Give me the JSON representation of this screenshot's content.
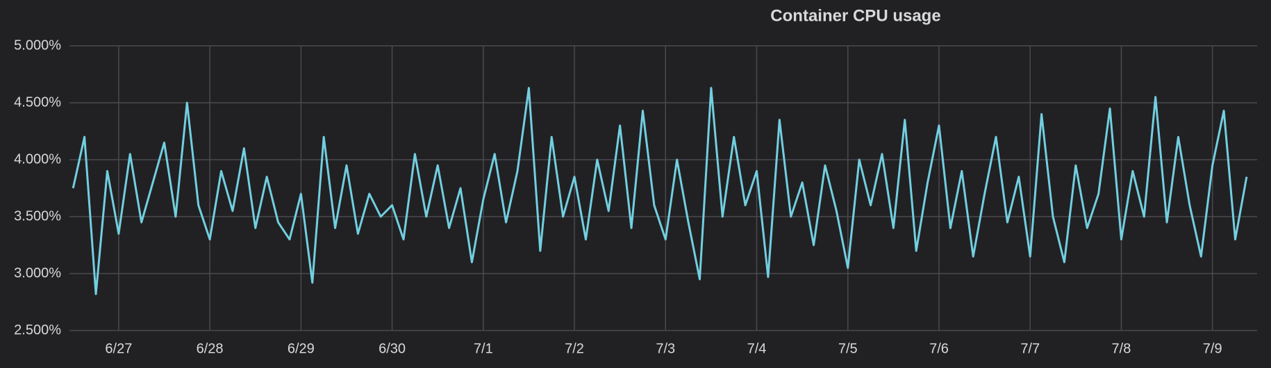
{
  "chart_data": {
    "type": "line",
    "title": "Container CPU usage",
    "color": "#72cfe0",
    "grid": true,
    "xlim": [
      -0.54,
      12.49
    ],
    "xticks": [
      {
        "value": 0,
        "label": "6/27"
      },
      {
        "value": 1,
        "label": "6/28"
      },
      {
        "value": 2,
        "label": "6/29"
      },
      {
        "value": 3,
        "label": "6/30"
      },
      {
        "value": 4,
        "label": "7/1"
      },
      {
        "value": 5,
        "label": "7/2"
      },
      {
        "value": 6,
        "label": "7/3"
      },
      {
        "value": 7,
        "label": "7/4"
      },
      {
        "value": 8,
        "label": "7/5"
      },
      {
        "value": 9,
        "label": "7/6"
      },
      {
        "value": 10,
        "label": "7/7"
      },
      {
        "value": 11,
        "label": "7/8"
      },
      {
        "value": 12,
        "label": "7/9"
      }
    ],
    "ylim": [
      2.5,
      5
    ],
    "yticks": [
      {
        "value": 2.5,
        "label": "2.500%"
      },
      {
        "value": 3,
        "label": "3.000%"
      },
      {
        "value": 3.5,
        "label": "3.500%"
      },
      {
        "value": 4,
        "label": "4.000%"
      },
      {
        "value": 4.5,
        "label": "4.500%"
      },
      {
        "value": 5,
        "label": "5.000%"
      }
    ],
    "x": [
      -0.5,
      -0.375,
      -0.25,
      -0.125,
      0,
      0.125,
      0.25,
      0.375,
      0.5,
      0.625,
      0.75,
      0.875,
      1,
      1.125,
      1.25,
      1.375,
      1.5,
      1.625,
      1.75,
      1.875,
      2,
      2.125,
      2.25,
      2.375,
      2.5,
      2.625,
      2.75,
      2.875,
      3,
      3.125,
      3.25,
      3.375,
      3.5,
      3.625,
      3.75,
      3.875,
      4,
      4.125,
      4.25,
      4.375,
      4.5,
      4.625,
      4.75,
      4.875,
      5,
      5.125,
      5.25,
      5.375,
      5.5,
      5.625,
      5.75,
      5.875,
      6,
      6.125,
      6.25,
      6.375,
      6.5,
      6.625,
      6.75,
      6.875,
      7,
      7.125,
      7.25,
      7.375,
      7.5,
      7.625,
      7.75,
      7.875,
      8,
      8.125,
      8.25,
      8.375,
      8.5,
      8.625,
      8.75,
      8.875,
      9,
      9.125,
      9.25,
      9.375,
      9.5,
      9.625,
      9.75,
      9.875,
      10,
      10.125,
      10.25,
      10.375,
      10.5,
      10.625,
      10.75,
      10.875,
      11,
      11.125,
      11.25,
      11.375,
      11.5,
      11.625,
      11.75,
      11.875,
      12,
      12.125,
      12.25,
      12.375
    ],
    "values": [
      3.75,
      4.2,
      2.82,
      3.9,
      3.35,
      4.05,
      3.45,
      3.8,
      4.15,
      3.5,
      4.5,
      3.6,
      3.3,
      3.9,
      3.55,
      4.1,
      3.4,
      3.85,
      3.45,
      3.3,
      3.7,
      2.92,
      4.2,
      3.4,
      3.95,
      3.35,
      3.7,
      3.5,
      3.6,
      3.3,
      4.05,
      3.5,
      3.95,
      3.4,
      3.75,
      3.1,
      3.65,
      4.05,
      3.45,
      3.9,
      4.63,
      3.2,
      4.2,
      3.5,
      3.85,
      3.3,
      4.0,
      3.55,
      4.3,
      3.4,
      4.43,
      3.6,
      3.3,
      4.0,
      3.45,
      2.95,
      4.63,
      3.5,
      4.2,
      3.6,
      3.9,
      2.97,
      4.35,
      3.5,
      3.8,
      3.25,
      3.95,
      3.55,
      3.05,
      4.0,
      3.6,
      4.05,
      3.4,
      4.35,
      3.2,
      3.8,
      4.3,
      3.4,
      3.9,
      3.15,
      3.7,
      4.2,
      3.45,
      3.85,
      3.15,
      4.4,
      3.5,
      3.1,
      3.95,
      3.4,
      3.7,
      4.45,
      3.3,
      3.9,
      3.5,
      4.55,
      3.45,
      4.2,
      3.6,
      3.15,
      3.95,
      4.43,
      3.3,
      3.85
    ]
  }
}
